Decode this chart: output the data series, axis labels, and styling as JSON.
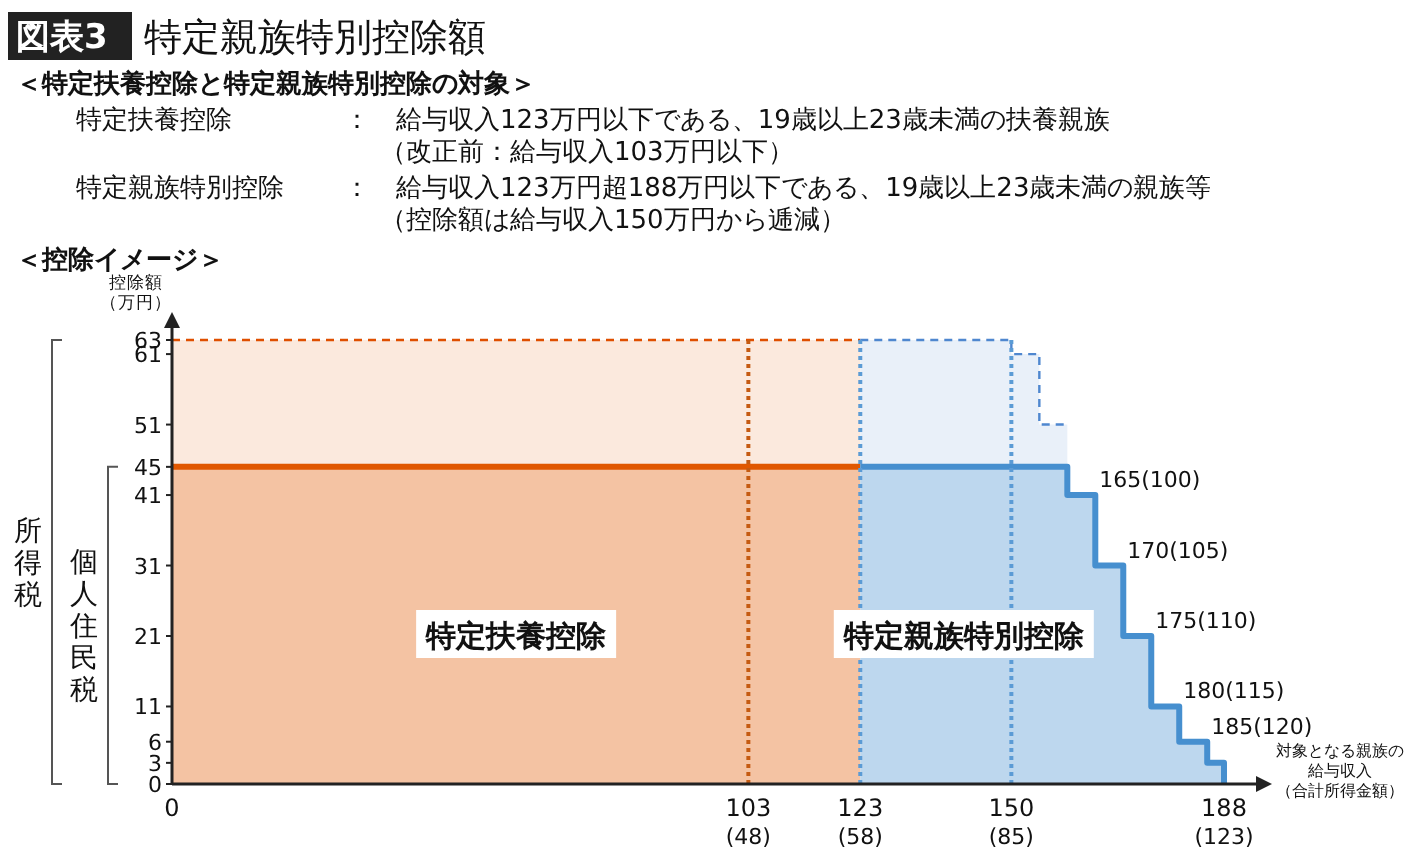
{
  "chart_data": {
    "type": "area",
    "title": "図表3 特定親族特別控除額",
    "ylabel": "控除額（万円）",
    "xlabel": "対象となる親族の給与収入（合計所得金額）",
    "xlim": [
      0,
      188
    ],
    "xticks": [
      0,
      103,
      123,
      150,
      188
    ],
    "ylim": [
      0,
      63
    ],
    "yticks": [
      0,
      3,
      6,
      11,
      21,
      31,
      41,
      45,
      51,
      61,
      63
    ],
    "grid": false,
    "legend": false,
    "series": [
      {
        "color": "#fbe9dd",
        "line_style": "dashed",
        "x": [
          0,
          123
        ],
        "values": [
          63,
          63
        ]
      },
      {
        "color": "#e9f0f9",
        "line_style": "dashed",
        "x": [
          123,
          150,
          150,
          155,
          155,
          160
        ],
        "values": [
          63,
          63,
          61,
          61,
          51,
          51
        ]
      },
      {
        "name": "特定扶養控除",
        "color": "#f4c3a3",
        "line_style": "solid",
        "x": [
          0,
          123
        ],
        "values": [
          45,
          45
        ]
      },
      {
        "name": "特定親族特別控除",
        "color": "#bdd7ee",
        "line_style": "solid",
        "x": [
          123,
          160,
          160,
          165,
          165,
          170,
          170,
          175,
          175,
          180,
          180,
          185,
          185,
          188,
          188
        ],
        "values": [
          45,
          45,
          41,
          41,
          31,
          31,
          21,
          21,
          11,
          11,
          6,
          6,
          3,
          3,
          0
        ]
      }
    ],
    "ref_lines": [
      {
        "axis": "x",
        "value": 103,
        "color": "#c55a11",
        "line_style": "dotted"
      },
      {
        "axis": "x",
        "value": 123,
        "color": "#5b9bd5",
        "line_style": "dotted"
      },
      {
        "axis": "x",
        "value": 150,
        "color": "#5b9bd5",
        "line_style": "dotted"
      }
    ],
    "annotations": [
      "＜特定扶養控除と特定親族特別控除の対象＞",
      "特定扶養控除",
      "：　給与収入123万円以下である、19歳以上23歳未満の扶養親族",
      "（改正前：給与収入103万円以下）",
      "特定親族特別控除",
      "：　給与収入123万円超188万円以下である、19歳以上23歳未満の親族等",
      "（控除額は給与収入150万円から逓減）",
      "＜控除イメージ＞",
      "所得税",
      "個人住民税",
      "(48)",
      "(58)",
      "(85)",
      "(123)",
      {
        "text": "165(100)",
        "x": 165,
        "y": 41
      },
      {
        "text": "170(105)",
        "x": 170,
        "y": 31
      },
      {
        "text": "175(110)",
        "x": 175,
        "y": 21
      },
      {
        "text": "180(115)",
        "x": 180,
        "y": 11
      },
      {
        "text": "185(120)",
        "x": 185,
        "y": 6
      }
    ]
  }
}
